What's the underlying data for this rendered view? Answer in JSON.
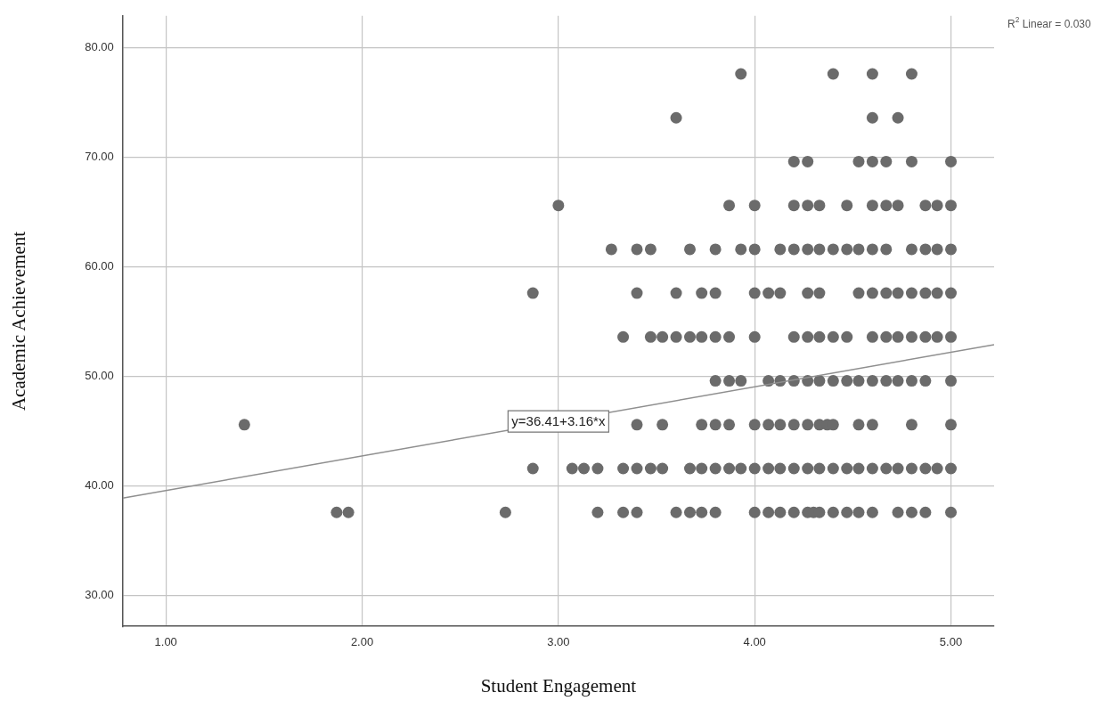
{
  "chart_data": {
    "type": "scatter",
    "xlabel": "Student Engagement",
    "ylabel": "Academic Achievement",
    "xlim": [
      0.78,
      5.22
    ],
    "ylim": [
      27.2,
      82.9
    ],
    "xticks": [
      {
        "value": 1,
        "label": "1.00"
      },
      {
        "value": 2,
        "label": "2.00"
      },
      {
        "value": 3,
        "label": "3.00"
      },
      {
        "value": 4,
        "label": "4.00"
      },
      {
        "value": 5,
        "label": "5.00"
      }
    ],
    "yticks": [
      {
        "value": 30,
        "label": "30.00"
      },
      {
        "value": 40,
        "label": "40.00"
      },
      {
        "value": 50,
        "label": "50.00"
      },
      {
        "value": 60,
        "label": "60.00"
      },
      {
        "value": 70,
        "label": "70.00"
      },
      {
        "value": 80,
        "label": "80.00"
      }
    ],
    "grid": true,
    "legend": false,
    "annotations": [
      "R$^{2}$ Linear = 0.030",
      {
        "text": "y=36.41+3.16*x",
        "x": 3.0,
        "y": 45.9
      }
    ],
    "series": [
      {
        "marker": "circle",
        "color": "#6b6b6b",
        "x": [
          3.93,
          4.4,
          4.6,
          4.8,
          3.6,
          4.6,
          4.73,
          4.2,
          4.27,
          4.53,
          4.6,
          4.67,
          4.8,
          5.0,
          3.0,
          3.87,
          4.0,
          4.2,
          4.27,
          4.33,
          4.47,
          4.6,
          4.67,
          4.73,
          4.87,
          4.93,
          5.0,
          3.27,
          3.4,
          3.47,
          3.67,
          3.8,
          3.93,
          4.0,
          4.13,
          4.2,
          4.27,
          4.33,
          4.4,
          4.47,
          4.53,
          4.6,
          4.67,
          4.8,
          4.87,
          4.93,
          5.0,
          2.87,
          3.4,
          3.6,
          3.73,
          3.8,
          4.0,
          4.07,
          4.13,
          4.27,
          4.33,
          4.53,
          4.6,
          4.67,
          4.73,
          4.8,
          4.87,
          4.93,
          5.0,
          3.33,
          3.47,
          3.53,
          3.6,
          3.67,
          3.73,
          3.8,
          3.87,
          4.0,
          4.2,
          4.27,
          4.33,
          4.4,
          4.47,
          4.6,
          4.67,
          4.73,
          4.8,
          4.87,
          4.93,
          5.0,
          3.8,
          3.87,
          3.93,
          4.07,
          4.13,
          4.2,
          4.27,
          4.33,
          4.4,
          4.47,
          4.53,
          4.6,
          4.67,
          4.73,
          4.8,
          4.87,
          5.0,
          1.4,
          3.4,
          3.53,
          3.73,
          3.8,
          3.87,
          4.0,
          4.07,
          4.13,
          4.2,
          4.27,
          4.33,
          4.37,
          4.4,
          4.53,
          4.6,
          4.8,
          5.0,
          2.87,
          3.07,
          3.13,
          3.2,
          3.33,
          3.4,
          3.47,
          3.53,
          3.67,
          3.73,
          3.8,
          3.87,
          3.93,
          4.0,
          4.07,
          4.13,
          4.2,
          4.27,
          4.33,
          4.4,
          4.47,
          4.53,
          4.6,
          4.67,
          4.73,
          4.8,
          4.87,
          4.93,
          5.0,
          1.87,
          1.93,
          2.73,
          3.2,
          3.33,
          3.4,
          3.6,
          3.67,
          3.73,
          3.8,
          4.0,
          4.07,
          4.13,
          4.2,
          4.27,
          4.3,
          4.33,
          4.4,
          4.47,
          4.53,
          4.6,
          4.73,
          4.8,
          4.87,
          5.0
        ],
        "values": [
          77.6,
          77.6,
          77.6,
          77.6,
          73.6,
          73.6,
          73.6,
          69.6,
          69.6,
          69.6,
          69.6,
          69.6,
          69.6,
          69.6,
          65.6,
          65.6,
          65.6,
          65.6,
          65.6,
          65.6,
          65.6,
          65.6,
          65.6,
          65.6,
          65.6,
          65.6,
          65.6,
          61.6,
          61.6,
          61.6,
          61.6,
          61.6,
          61.6,
          61.6,
          61.6,
          61.6,
          61.6,
          61.6,
          61.6,
          61.6,
          61.6,
          61.6,
          61.6,
          61.6,
          61.6,
          61.6,
          61.6,
          57.6,
          57.6,
          57.6,
          57.6,
          57.6,
          57.6,
          57.6,
          57.6,
          57.6,
          57.6,
          57.6,
          57.6,
          57.6,
          57.6,
          57.6,
          57.6,
          57.6,
          57.6,
          53.6,
          53.6,
          53.6,
          53.6,
          53.6,
          53.6,
          53.6,
          53.6,
          53.6,
          53.6,
          53.6,
          53.6,
          53.6,
          53.6,
          53.6,
          53.6,
          53.6,
          53.6,
          53.6,
          53.6,
          53.6,
          49.6,
          49.6,
          49.6,
          49.6,
          49.6,
          49.6,
          49.6,
          49.6,
          49.6,
          49.6,
          49.6,
          49.6,
          49.6,
          49.6,
          49.6,
          49.6,
          49.6,
          45.6,
          45.6,
          45.6,
          45.6,
          45.6,
          45.6,
          45.6,
          45.6,
          45.6,
          45.6,
          45.6,
          45.6,
          45.6,
          45.6,
          45.6,
          45.6,
          45.6,
          45.6,
          41.6,
          41.6,
          41.6,
          41.6,
          41.6,
          41.6,
          41.6,
          41.6,
          41.6,
          41.6,
          41.6,
          41.6,
          41.6,
          41.6,
          41.6,
          41.6,
          41.6,
          41.6,
          41.6,
          41.6,
          41.6,
          41.6,
          41.6,
          41.6,
          41.6,
          41.6,
          41.6,
          41.6,
          41.6,
          37.6,
          37.6,
          37.6,
          37.6,
          37.6,
          37.6,
          37.6,
          37.6,
          37.6,
          37.6,
          37.6,
          37.6,
          37.6,
          37.6,
          37.6,
          37.6,
          37.6,
          37.6,
          37.6,
          37.6,
          37.6,
          37.6,
          37.6,
          37.6,
          37.6
        ]
      },
      {
        "type": "line",
        "marker": "none",
        "color": "#8f8f8f",
        "x": [
          0.78,
          5.22
        ],
        "values": [
          38.9,
          52.9
        ]
      }
    ]
  }
}
